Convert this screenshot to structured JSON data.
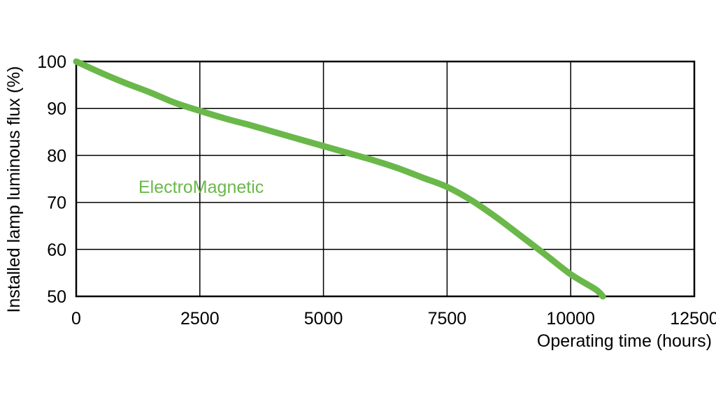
{
  "chart_data": {
    "type": "line",
    "xlabel": "Operating time (hours)",
    "ylabel": "Installed lamp luminous flux  (%)",
    "xlim": [
      0,
      12500
    ],
    "ylim": [
      50,
      100
    ],
    "x_ticks": [
      0,
      2500,
      5000,
      7500,
      10000,
      12500
    ],
    "y_ticks": [
      50,
      60,
      70,
      80,
      90,
      100
    ],
    "x_tick_labels": [
      "0",
      "2500",
      "5000",
      "7500",
      "10000",
      "12500"
    ],
    "y_tick_labels": [
      "50",
      "60",
      "70",
      "80",
      "90",
      "100"
    ],
    "grid": true,
    "legend": "none",
    "series": [
      {
        "name": "ElectroMagnetic",
        "color": "#6ab84a",
        "x": [
          0,
          500,
          1000,
          1500,
          2000,
          2500,
          3000,
          3500,
          4000,
          4500,
          5000,
          5500,
          6000,
          6500,
          7000,
          7500,
          8000,
          8500,
          9000,
          9500,
          10000,
          10500,
          10650
        ],
        "y": [
          100,
          97.6,
          95.4,
          93.4,
          91.2,
          89.5,
          87.9,
          86.5,
          85.0,
          83.5,
          82.0,
          80.5,
          79.0,
          77.3,
          75.3,
          73.3,
          70.4,
          66.8,
          62.8,
          58.8,
          54.7,
          51.5,
          50
        ]
      }
    ]
  }
}
